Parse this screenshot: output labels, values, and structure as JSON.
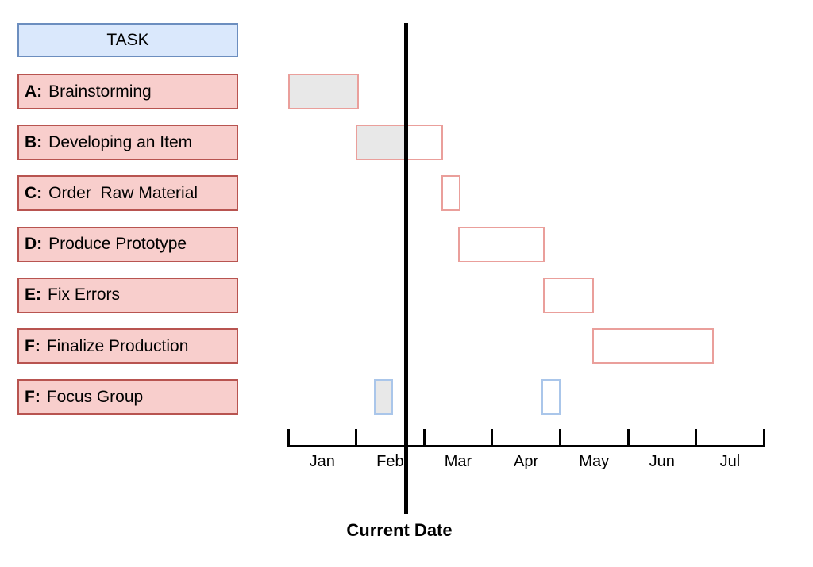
{
  "header": {
    "label": "TASK"
  },
  "current_date": {
    "label": "Current Date"
  },
  "chart_data": {
    "type": "bar",
    "variant": "gantt-timeline",
    "title": "",
    "x_axis": {
      "tick_labels": [
        "Jan",
        "Feb",
        "Mar",
        "Apr",
        "May",
        "Jun",
        "Jul"
      ],
      "range_months": [
        0,
        7
      ],
      "ticks_count": 8,
      "grid": false
    },
    "current_date_month": 1.74,
    "tasks": [
      {
        "prefix": "A:",
        "label": "Brainstorming",
        "bars": [
          {
            "start_month": 0.0,
            "end_month": 1.04,
            "fill": "complete",
            "outline": "red"
          }
        ]
      },
      {
        "prefix": "B:",
        "label": "Developing an Item",
        "bars": [
          {
            "start_month": 0.99,
            "end_month": 2.28,
            "fill": "partial-to-current-date",
            "outline": "red"
          }
        ]
      },
      {
        "prefix": "C:",
        "label": "Order  Raw Material",
        "bars": [
          {
            "start_month": 2.25,
            "end_month": 2.54,
            "fill": "none",
            "outline": "red"
          }
        ]
      },
      {
        "prefix": "D:",
        "label": "Produce Prototype",
        "bars": [
          {
            "start_month": 2.5,
            "end_month": 3.77,
            "fill": "none",
            "outline": "red"
          }
        ]
      },
      {
        "prefix": "E:",
        "label": "Fix Errors",
        "bars": [
          {
            "start_month": 3.75,
            "end_month": 4.5,
            "fill": "none",
            "outline": "red"
          }
        ]
      },
      {
        "prefix": "F:",
        "label": "Finalize Production",
        "bars": [
          {
            "start_month": 4.48,
            "end_month": 6.26,
            "fill": "none",
            "outline": "red"
          }
        ]
      },
      {
        "prefix": "F:",
        "label": "Focus Group",
        "bars": [
          {
            "start_month": 1.26,
            "end_month": 1.54,
            "fill": "complete",
            "outline": "blue"
          },
          {
            "start_month": 3.73,
            "end_month": 4.01,
            "fill": "none",
            "outline": "blue"
          }
        ]
      }
    ],
    "colors": {
      "header_fill": "#dae8fc",
      "header_border": "#6c8ebf",
      "task_fill": "#f8cecc",
      "task_border": "#b85450",
      "bar_red_border": "#ea9f9b",
      "bar_blue_border": "#aac6ea",
      "bar_complete_fill": "#e8e8e8",
      "bar_empty_fill": "#ffffff",
      "axis_color": "#000000",
      "current_date_line_color": "#000000"
    }
  }
}
